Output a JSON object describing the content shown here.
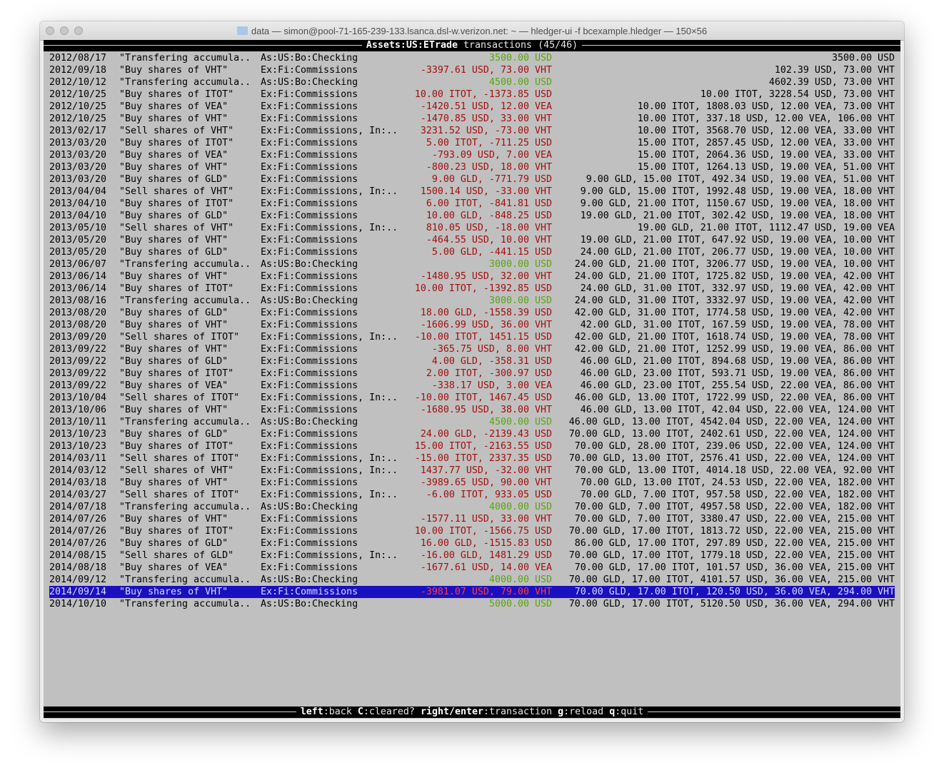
{
  "window": {
    "title": "data — simon@pool-71-165-239-133.lsanca.dsl-w.verizon.net: ~ — hledger-ui -f bcexample.hledger — 150×56",
    "folder_icon": "folder-icon"
  },
  "header": {
    "account": "Assets:US:ETrade",
    "label": "transactions",
    "position": "(45/46)"
  },
  "colors": {
    "background": "#c0c0c0",
    "negative": "#a30d0d",
    "positive": "#5aa50e",
    "selection": "#1a10c0"
  },
  "selected_index": 44,
  "rows": [
    {
      "date": "2012/08/17",
      "desc": "\"Transfering accumula..",
      "account": "As:US:Bo:Checking",
      "amount": "3500.00 USD",
      "balance": "3500.00 USD",
      "kind": "pos"
    },
    {
      "date": "2012/09/18",
      "desc": "\"Buy shares of VHT\"",
      "account": "Ex:Fi:Commissions",
      "amount": "-3397.61 USD, 73.00 VHT",
      "balance": "102.39 USD, 73.00 VHT",
      "kind": "neg"
    },
    {
      "date": "2012/10/12",
      "desc": "\"Transfering accumula..",
      "account": "As:US:Bo:Checking",
      "amount": "4500.00 USD",
      "balance": "4602.39 USD, 73.00 VHT",
      "kind": "pos"
    },
    {
      "date": "2012/10/25",
      "desc": "\"Buy shares of ITOT\"",
      "account": "Ex:Fi:Commissions",
      "amount": "10.00 ITOT, -1373.85 USD",
      "balance": "10.00 ITOT, 3228.54 USD, 73.00 VHT",
      "kind": "neg"
    },
    {
      "date": "2012/10/25",
      "desc": "\"Buy shares of VEA\"",
      "account": "Ex:Fi:Commissions",
      "amount": "-1420.51 USD, 12.00 VEA",
      "balance": "10.00 ITOT, 1808.03 USD, 12.00 VEA, 73.00 VHT",
      "kind": "neg"
    },
    {
      "date": "2012/10/25",
      "desc": "\"Buy shares of VHT\"",
      "account": "Ex:Fi:Commissions",
      "amount": "-1470.85 USD, 33.00 VHT",
      "balance": "10.00 ITOT, 337.18 USD, 12.00 VEA, 106.00 VHT",
      "kind": "neg"
    },
    {
      "date": "2013/02/17",
      "desc": "\"Sell shares of VHT\"",
      "account": "Ex:Fi:Commissions, In:..",
      "amount": "3231.52 USD, -73.00 VHT",
      "balance": "10.00 ITOT, 3568.70 USD, 12.00 VEA, 33.00 VHT",
      "kind": "neg"
    },
    {
      "date": "2013/03/20",
      "desc": "\"Buy shares of ITOT\"",
      "account": "Ex:Fi:Commissions",
      "amount": "5.00 ITOT, -711.25 USD",
      "balance": "15.00 ITOT, 2857.45 USD, 12.00 VEA, 33.00 VHT",
      "kind": "neg"
    },
    {
      "date": "2013/03/20",
      "desc": "\"Buy shares of VEA\"",
      "account": "Ex:Fi:Commissions",
      "amount": "-793.09 USD, 7.00 VEA",
      "balance": "15.00 ITOT, 2064.36 USD, 19.00 VEA, 33.00 VHT",
      "kind": "neg"
    },
    {
      "date": "2013/03/20",
      "desc": "\"Buy shares of VHT\"",
      "account": "Ex:Fi:Commissions",
      "amount": "-800.23 USD, 18.00 VHT",
      "balance": "15.00 ITOT, 1264.13 USD, 19.00 VEA, 51.00 VHT",
      "kind": "neg"
    },
    {
      "date": "2013/03/20",
      "desc": "\"Buy shares of GLD\"",
      "account": "Ex:Fi:Commissions",
      "amount": "9.00 GLD, -771.79 USD",
      "balance": "9.00 GLD, 15.00 ITOT, 492.34 USD, 19.00 VEA, 51.00 VHT",
      "kind": "neg"
    },
    {
      "date": "2013/04/04",
      "desc": "\"Sell shares of VHT\"",
      "account": "Ex:Fi:Commissions, In:..",
      "amount": "1500.14 USD, -33.00 VHT",
      "balance": "9.00 GLD, 15.00 ITOT, 1992.48 USD, 19.00 VEA, 18.00 VHT",
      "kind": "neg"
    },
    {
      "date": "2013/04/10",
      "desc": "\"Buy shares of ITOT\"",
      "account": "Ex:Fi:Commissions",
      "amount": "6.00 ITOT, -841.81 USD",
      "balance": "9.00 GLD, 21.00 ITOT, 1150.67 USD, 19.00 VEA, 18.00 VHT",
      "kind": "neg"
    },
    {
      "date": "2013/04/10",
      "desc": "\"Buy shares of GLD\"",
      "account": "Ex:Fi:Commissions",
      "amount": "10.00 GLD, -848.25 USD",
      "balance": "19.00 GLD, 21.00 ITOT, 302.42 USD, 19.00 VEA, 18.00 VHT",
      "kind": "neg"
    },
    {
      "date": "2013/05/10",
      "desc": "\"Sell shares of VHT\"",
      "account": "Ex:Fi:Commissions, In:..",
      "amount": "810.05 USD, -18.00 VHT",
      "balance": "19.00 GLD, 21.00 ITOT, 1112.47 USD, 19.00 VEA",
      "kind": "neg"
    },
    {
      "date": "2013/05/20",
      "desc": "\"Buy shares of VHT\"",
      "account": "Ex:Fi:Commissions",
      "amount": "-464.55 USD, 10.00 VHT",
      "balance": "19.00 GLD, 21.00 ITOT, 647.92 USD, 19.00 VEA, 10.00 VHT",
      "kind": "neg"
    },
    {
      "date": "2013/05/20",
      "desc": "\"Buy shares of GLD\"",
      "account": "Ex:Fi:Commissions",
      "amount": "5.00 GLD, -441.15 USD",
      "balance": "24.00 GLD, 21.00 ITOT, 206.77 USD, 19.00 VEA, 10.00 VHT",
      "kind": "neg"
    },
    {
      "date": "2013/06/07",
      "desc": "\"Transfering accumula..",
      "account": "As:US:Bo:Checking",
      "amount": "3000.00 USD",
      "balance": "24.00 GLD, 21.00 ITOT, 3206.77 USD, 19.00 VEA, 10.00 VHT",
      "kind": "pos"
    },
    {
      "date": "2013/06/14",
      "desc": "\"Buy shares of VHT\"",
      "account": "Ex:Fi:Commissions",
      "amount": "-1480.95 USD, 32.00 VHT",
      "balance": "24.00 GLD, 21.00 ITOT, 1725.82 USD, 19.00 VEA, 42.00 VHT",
      "kind": "neg"
    },
    {
      "date": "2013/06/14",
      "desc": "\"Buy shares of ITOT\"",
      "account": "Ex:Fi:Commissions",
      "amount": "10.00 ITOT, -1392.85 USD",
      "balance": "24.00 GLD, 31.00 ITOT, 332.97 USD, 19.00 VEA, 42.00 VHT",
      "kind": "neg"
    },
    {
      "date": "2013/08/16",
      "desc": "\"Transfering accumula..",
      "account": "As:US:Bo:Checking",
      "amount": "3000.00 USD",
      "balance": "24.00 GLD, 31.00 ITOT, 3332.97 USD, 19.00 VEA, 42.00 VHT",
      "kind": "pos"
    },
    {
      "date": "2013/08/20",
      "desc": "\"Buy shares of GLD\"",
      "account": "Ex:Fi:Commissions",
      "amount": "18.00 GLD, -1558.39 USD",
      "balance": "42.00 GLD, 31.00 ITOT, 1774.58 USD, 19.00 VEA, 42.00 VHT",
      "kind": "neg"
    },
    {
      "date": "2013/08/20",
      "desc": "\"Buy shares of VHT\"",
      "account": "Ex:Fi:Commissions",
      "amount": "-1606.99 USD, 36.00 VHT",
      "balance": "42.00 GLD, 31.00 ITOT, 167.59 USD, 19.00 VEA, 78.00 VHT",
      "kind": "neg"
    },
    {
      "date": "2013/09/20",
      "desc": "\"Sell shares of ITOT\"",
      "account": "Ex:Fi:Commissions, In:..",
      "amount": "-10.00 ITOT, 1451.15 USD",
      "balance": "42.00 GLD, 21.00 ITOT, 1618.74 USD, 19.00 VEA, 78.00 VHT",
      "kind": "neg"
    },
    {
      "date": "2013/09/22",
      "desc": "\"Buy shares of VHT\"",
      "account": "Ex:Fi:Commissions",
      "amount": "-365.75 USD, 8.00 VHT",
      "balance": "42.00 GLD, 21.00 ITOT, 1252.99 USD, 19.00 VEA, 86.00 VHT",
      "kind": "neg"
    },
    {
      "date": "2013/09/22",
      "desc": "\"Buy shares of GLD\"",
      "account": "Ex:Fi:Commissions",
      "amount": "4.00 GLD, -358.31 USD",
      "balance": "46.00 GLD, 21.00 ITOT, 894.68 USD, 19.00 VEA, 86.00 VHT",
      "kind": "neg"
    },
    {
      "date": "2013/09/22",
      "desc": "\"Buy shares of ITOT\"",
      "account": "Ex:Fi:Commissions",
      "amount": "2.00 ITOT, -300.97 USD",
      "balance": "46.00 GLD, 23.00 ITOT, 593.71 USD, 19.00 VEA, 86.00 VHT",
      "kind": "neg"
    },
    {
      "date": "2013/09/22",
      "desc": "\"Buy shares of VEA\"",
      "account": "Ex:Fi:Commissions",
      "amount": "-338.17 USD, 3.00 VEA",
      "balance": "46.00 GLD, 23.00 ITOT, 255.54 USD, 22.00 VEA, 86.00 VHT",
      "kind": "neg"
    },
    {
      "date": "2013/10/04",
      "desc": "\"Sell shares of ITOT\"",
      "account": "Ex:Fi:Commissions, In:..",
      "amount": "-10.00 ITOT, 1467.45 USD",
      "balance": "46.00 GLD, 13.00 ITOT, 1722.99 USD, 22.00 VEA, 86.00 VHT",
      "kind": "neg"
    },
    {
      "date": "2013/10/06",
      "desc": "\"Buy shares of VHT\"",
      "account": "Ex:Fi:Commissions",
      "amount": "-1680.95 USD, 38.00 VHT",
      "balance": "46.00 GLD, 13.00 ITOT, 42.04 USD, 22.00 VEA, 124.00 VHT",
      "kind": "neg"
    },
    {
      "date": "2013/10/11",
      "desc": "\"Transfering accumula..",
      "account": "As:US:Bo:Checking",
      "amount": "4500.00 USD",
      "balance": "46.00 GLD, 13.00 ITOT, 4542.04 USD, 22.00 VEA, 124.00 VHT",
      "kind": "pos"
    },
    {
      "date": "2013/10/23",
      "desc": "\"Buy shares of GLD\"",
      "account": "Ex:Fi:Commissions",
      "amount": "24.00 GLD, -2139.43 USD",
      "balance": "70.00 GLD, 13.00 ITOT, 2402.61 USD, 22.00 VEA, 124.00 VHT",
      "kind": "neg"
    },
    {
      "date": "2013/10/23",
      "desc": "\"Buy shares of ITOT\"",
      "account": "Ex:Fi:Commissions",
      "amount": "15.00 ITOT, -2163.55 USD",
      "balance": "70.00 GLD, 28.00 ITOT, 239.06 USD, 22.00 VEA, 124.00 VHT",
      "kind": "neg"
    },
    {
      "date": "2014/03/11",
      "desc": "\"Sell shares of ITOT\"",
      "account": "Ex:Fi:Commissions, In:..",
      "amount": "-15.00 ITOT, 2337.35 USD",
      "balance": "70.00 GLD, 13.00 ITOT, 2576.41 USD, 22.00 VEA, 124.00 VHT",
      "kind": "neg"
    },
    {
      "date": "2014/03/12",
      "desc": "\"Sell shares of VHT\"",
      "account": "Ex:Fi:Commissions, In:..",
      "amount": "1437.77 USD, -32.00 VHT",
      "balance": "70.00 GLD, 13.00 ITOT, 4014.18 USD, 22.00 VEA, 92.00 VHT",
      "kind": "neg"
    },
    {
      "date": "2014/03/18",
      "desc": "\"Buy shares of VHT\"",
      "account": "Ex:Fi:Commissions",
      "amount": "-3989.65 USD, 90.00 VHT",
      "balance": "70.00 GLD, 13.00 ITOT, 24.53 USD, 22.00 VEA, 182.00 VHT",
      "kind": "neg"
    },
    {
      "date": "2014/03/27",
      "desc": "\"Sell shares of ITOT\"",
      "account": "Ex:Fi:Commissions, In:..",
      "amount": "-6.00 ITOT, 933.05 USD",
      "balance": "70.00 GLD, 7.00 ITOT, 957.58 USD, 22.00 VEA, 182.00 VHT",
      "kind": "neg"
    },
    {
      "date": "2014/07/18",
      "desc": "\"Transfering accumula..",
      "account": "As:US:Bo:Checking",
      "amount": "4000.00 USD",
      "balance": "70.00 GLD, 7.00 ITOT, 4957.58 USD, 22.00 VEA, 182.00 VHT",
      "kind": "pos"
    },
    {
      "date": "2014/07/26",
      "desc": "\"Buy shares of VHT\"",
      "account": "Ex:Fi:Commissions",
      "amount": "-1577.11 USD, 33.00 VHT",
      "balance": "70.00 GLD, 7.00 ITOT, 3380.47 USD, 22.00 VEA, 215.00 VHT",
      "kind": "neg"
    },
    {
      "date": "2014/07/26",
      "desc": "\"Buy shares of ITOT\"",
      "account": "Ex:Fi:Commissions",
      "amount": "10.00 ITOT, -1566.75 USD",
      "balance": "70.00 GLD, 17.00 ITOT, 1813.72 USD, 22.00 VEA, 215.00 VHT",
      "kind": "neg"
    },
    {
      "date": "2014/07/26",
      "desc": "\"Buy shares of GLD\"",
      "account": "Ex:Fi:Commissions",
      "amount": "16.00 GLD, -1515.83 USD",
      "balance": "86.00 GLD, 17.00 ITOT, 297.89 USD, 22.00 VEA, 215.00 VHT",
      "kind": "neg"
    },
    {
      "date": "2014/08/15",
      "desc": "\"Sell shares of GLD\"",
      "account": "Ex:Fi:Commissions, In:..",
      "amount": "-16.00 GLD, 1481.29 USD",
      "balance": "70.00 GLD, 17.00 ITOT, 1779.18 USD, 22.00 VEA, 215.00 VHT",
      "kind": "neg"
    },
    {
      "date": "2014/08/18",
      "desc": "\"Buy shares of VEA\"",
      "account": "Ex:Fi:Commissions",
      "amount": "-1677.61 USD, 14.00 VEA",
      "balance": "70.00 GLD, 17.00 ITOT, 101.57 USD, 36.00 VEA, 215.00 VHT",
      "kind": "neg"
    },
    {
      "date": "2014/09/12",
      "desc": "\"Transfering accumula..",
      "account": "As:US:Bo:Checking",
      "amount": "4000.00 USD",
      "balance": "70.00 GLD, 17.00 ITOT, 4101.57 USD, 36.00 VEA, 215.00 VHT",
      "kind": "pos"
    },
    {
      "date": "2014/09/14",
      "desc": "\"Buy shares of VHT\"",
      "account": "Ex:Fi:Commissions",
      "amount": "-3981.07 USD, 79.00 VHT",
      "balance": "70.00 GLD, 17.00 ITOT, 120.50 USD, 36.00 VEA, 294.00 VHT",
      "kind": "neg"
    },
    {
      "date": "2014/10/10",
      "desc": "\"Transfering accumula..",
      "account": "As:US:Bo:Checking",
      "amount": "5000.00 USD",
      "balance": "70.00 GLD, 17.00 ITOT, 5120.50 USD, 36.00 VEA, 294.00 VHT",
      "kind": "pos"
    }
  ],
  "footer": {
    "keys": [
      {
        "key": "left",
        "action": "back"
      },
      {
        "key": "C",
        "action": "cleared?"
      },
      {
        "key": "right/enter",
        "action": "transaction"
      },
      {
        "key": "g",
        "action": "reload"
      },
      {
        "key": "q",
        "action": "quit"
      }
    ]
  }
}
